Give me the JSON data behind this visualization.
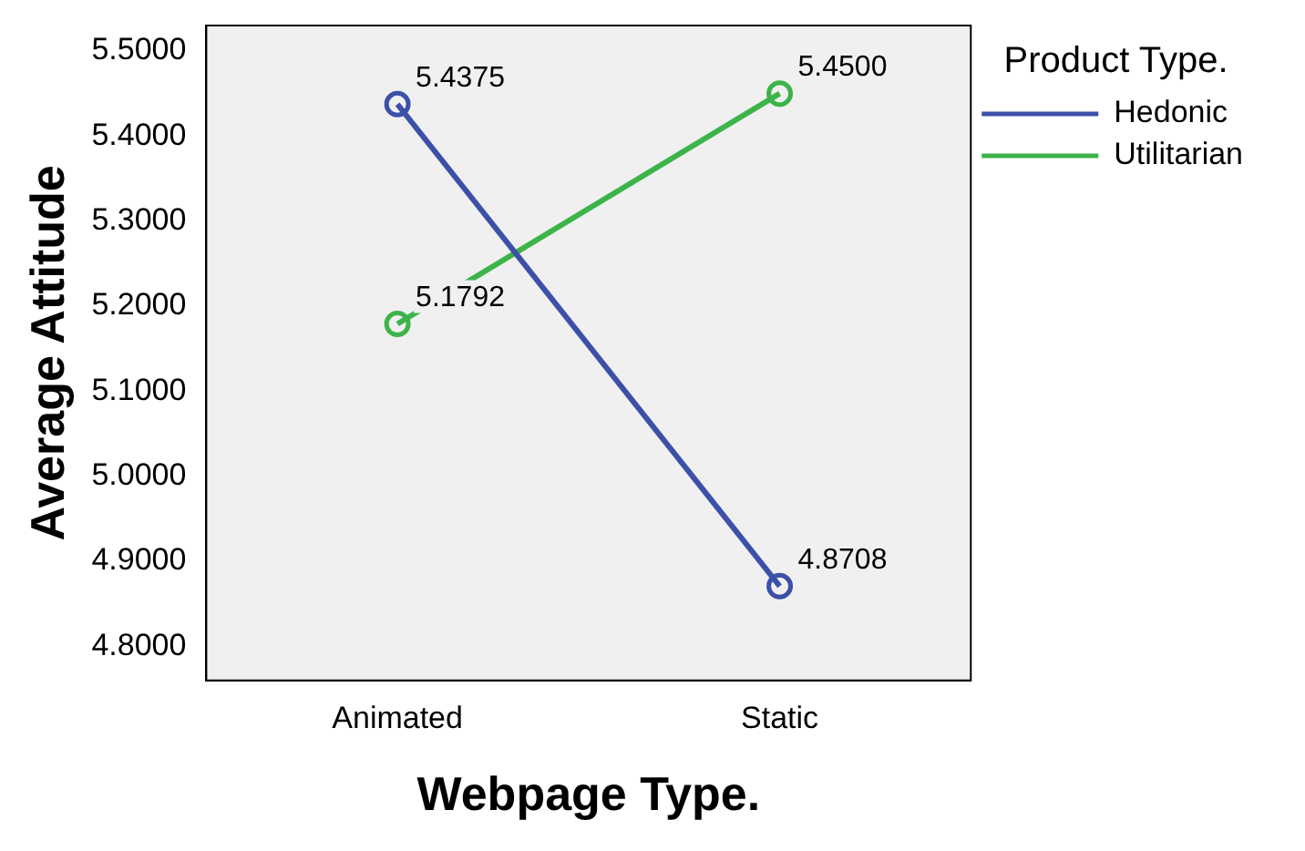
{
  "chart_data": {
    "type": "line",
    "xlabel": "Webpage Type.",
    "ylabel": "Average Attitude",
    "legend_title": "Product Type.",
    "categories": [
      "Animated",
      "Static"
    ],
    "series": [
      {
        "name": "Hedonic",
        "color": "#3c50a8",
        "values": [
          5.4375,
          4.8708
        ],
        "value_labels": [
          "5.4375",
          "4.8708"
        ]
      },
      {
        "name": "Utilitarian",
        "color": "#3cb44a",
        "values": [
          5.1792,
          5.45
        ],
        "value_labels": [
          "5.1792",
          "5.4500"
        ]
      }
    ],
    "ylim": [
      4.76,
      5.53
    ],
    "yticks": [
      {
        "value": 4.8,
        "label": "4.8000"
      },
      {
        "value": 4.9,
        "label": "4.9000"
      },
      {
        "value": 5.0,
        "label": "5.0000"
      },
      {
        "value": 5.1,
        "label": "5.1000"
      },
      {
        "value": 5.2,
        "label": "5.2000"
      },
      {
        "value": 5.3,
        "label": "5.3000"
      },
      {
        "value": 5.4,
        "label": "5.4000"
      },
      {
        "value": 5.5,
        "label": "5.5000"
      }
    ],
    "grid": false,
    "legend": "right",
    "marker": "circle",
    "line_style": "solid"
  }
}
